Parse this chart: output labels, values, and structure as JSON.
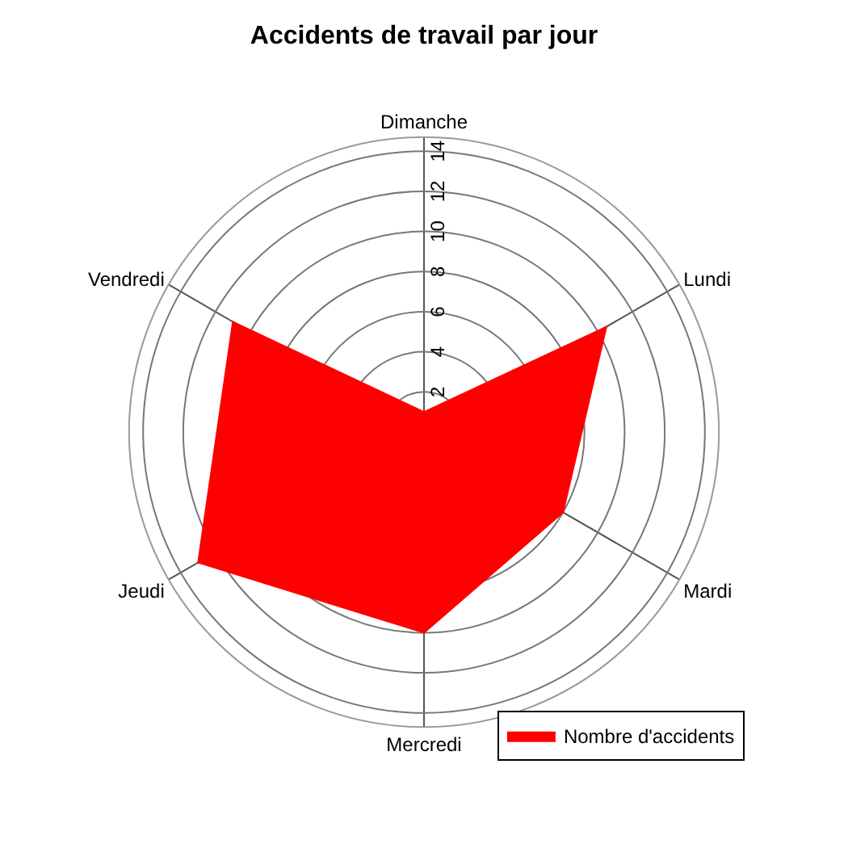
{
  "chart_data": {
    "type": "radar",
    "title": "Accidents de travail par jour",
    "categories": [
      "Dimanche",
      "Lundi",
      "Mardi",
      "Mercredi",
      "Jeudi",
      "Vendredi"
    ],
    "series": [
      {
        "name": "Nombre d'accidents",
        "color": "#ff0000",
        "values": [
          1,
          10.5,
          8,
          10,
          13,
          11
        ]
      }
    ],
    "ylim": [
      0,
      14.7
    ],
    "yticks": [
      2,
      4,
      6,
      8,
      10,
      12,
      14
    ],
    "grid": true,
    "legend": "bottom right"
  }
}
